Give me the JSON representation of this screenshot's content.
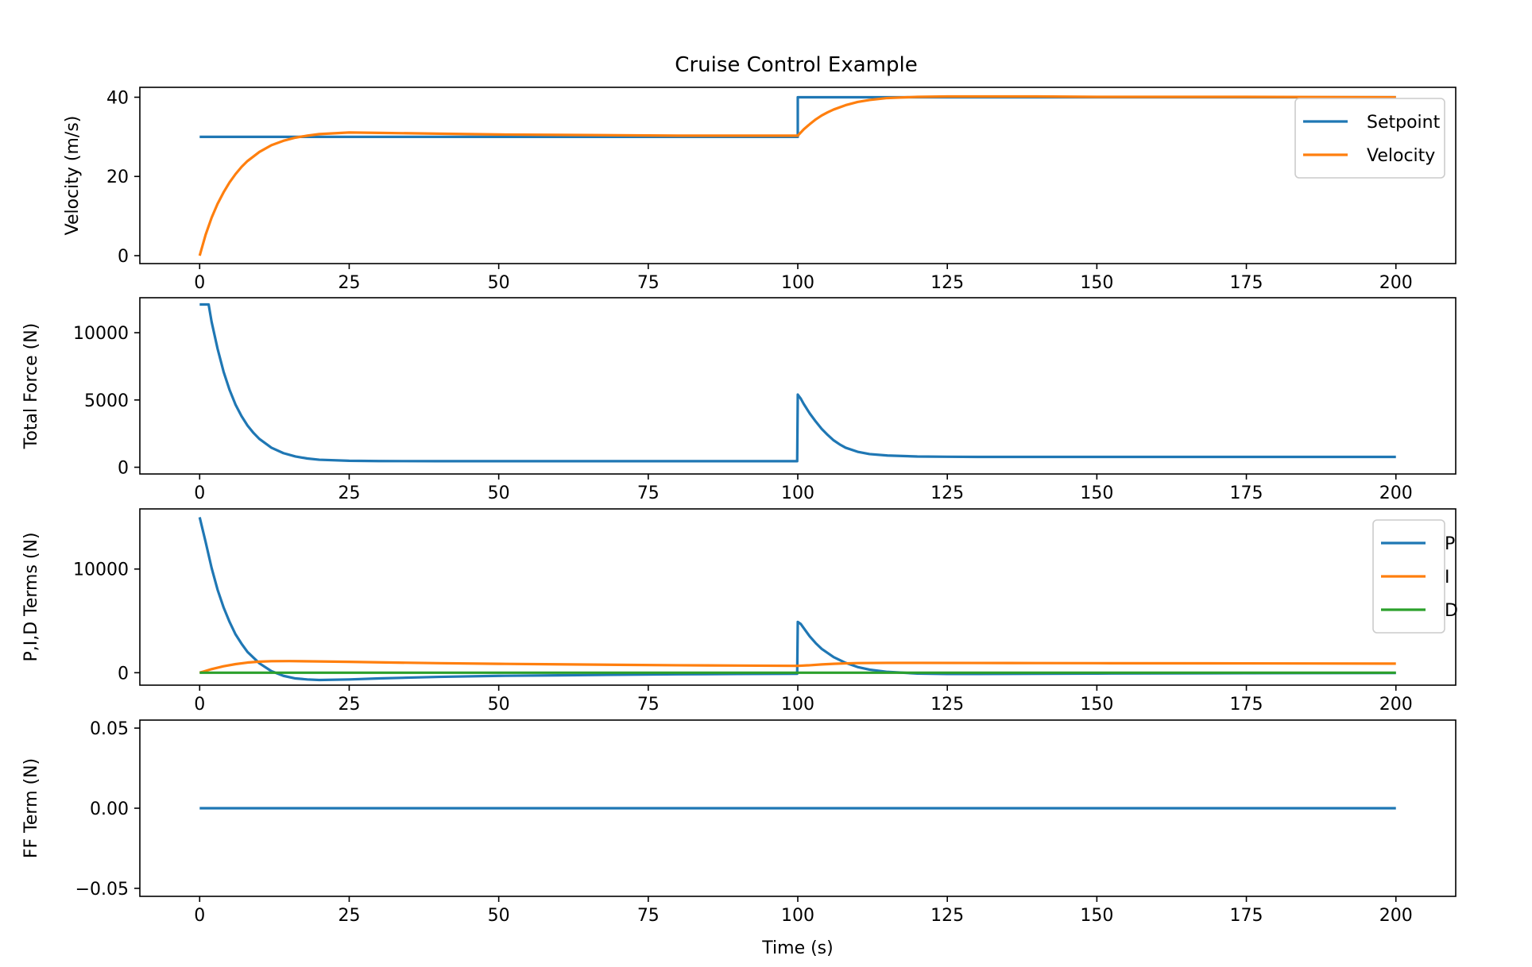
{
  "chart_data": {
    "type": "line",
    "title": "Cruise Control Example",
    "xlabel": "Time (s)",
    "shared_x": {
      "range": [
        -10,
        210
      ],
      "ticks": [
        0,
        25,
        50,
        75,
        100,
        125,
        150,
        175,
        200
      ]
    },
    "colors": {
      "blue": "#1f77b4",
      "orange": "#ff7f0e",
      "green": "#2ca02c"
    },
    "subplots": [
      {
        "id": "velocity",
        "ylabel": "Velocity (m/s)",
        "ylim": [
          -2,
          42.5
        ],
        "yticks": [
          0,
          20,
          40
        ],
        "ytick_labels": [
          "0",
          "20",
          "40"
        ],
        "legend": {
          "location": "top-right",
          "entries": [
            "Setpoint",
            "Velocity"
          ]
        },
        "series": [
          {
            "name": "Setpoint",
            "color": "#1f77b4",
            "x": [
              0,
              100,
              100,
              200
            ],
            "y": [
              30,
              30,
              40,
              40
            ]
          },
          {
            "name": "Velocity",
            "color": "#ff7f0e",
            "x": [
              0,
              1,
              2,
              3,
              4,
              5,
              6,
              7,
              8,
              10,
              12,
              14,
              16,
              18,
              20,
              25,
              30,
              40,
              50,
              60,
              70,
              80,
              90,
              100,
              101,
              102,
              103,
              104,
              105,
              106,
              108,
              110,
              112,
              115,
              120,
              125,
              130,
              140,
              150,
              175,
              200
            ],
            "y": [
              0,
              5.3,
              9.6,
              13.1,
              16.0,
              18.5,
              20.6,
              22.4,
              23.9,
              26.2,
              27.9,
              29.0,
              29.8,
              30.3,
              30.7,
              31.1,
              31.0,
              30.8,
              30.6,
              30.5,
              30.4,
              30.3,
              30.3,
              30.3,
              31.9,
              33.2,
              34.4,
              35.4,
              36.2,
              36.9,
              38.0,
              38.8,
              39.3,
              39.8,
              40.1,
              40.2,
              40.2,
              40.2,
              40.1,
              40.1,
              40.0
            ]
          }
        ]
      },
      {
        "id": "force",
        "ylabel": "Total Force (N)",
        "ylim": [
          -500,
          12600
        ],
        "yticks": [
          0,
          5000,
          10000
        ],
        "ytick_labels": [
          "0",
          "5000",
          "10000"
        ],
        "series": [
          {
            "name": "",
            "color": "#1f77b4",
            "x": [
              0,
              1,
              1.5,
              2,
              3,
              4,
              5,
              6,
              7,
              8,
              9,
              10,
              12,
              14,
              16,
              18,
              20,
              25,
              30,
              40,
              50,
              60,
              70,
              80,
              90,
              99.9,
              100,
              100.5,
              101,
              102,
              103,
              104,
              105,
              106,
              107,
              108,
              110,
              112,
              115,
              120,
              125,
              130,
              140,
              150,
              175,
              200
            ],
            "y": [
              12100,
              12100,
              12100,
              10800,
              8800,
              7100,
              5750,
              4650,
              3800,
              3100,
              2550,
              2100,
              1450,
              1050,
              800,
              650,
              560,
              480,
              460,
              450,
              450,
              450,
              450,
              450,
              450,
              450,
              5400,
              5100,
              4700,
              4000,
              3400,
              2850,
              2400,
              2000,
              1700,
              1450,
              1150,
              980,
              870,
              800,
              780,
              770,
              770,
              770,
              770,
              770
            ]
          }
        ]
      },
      {
        "id": "pid",
        "ylabel": "P,I,D Terms (N)",
        "ylim": [
          -1200,
          15800
        ],
        "yticks": [
          0,
          10000
        ],
        "ytick_labels": [
          "0",
          "10000"
        ],
        "legend": {
          "location": "top-right",
          "entries": [
            "P",
            "I",
            "D"
          ]
        },
        "series": [
          {
            "name": "P",
            "color": "#1f77b4",
            "x": [
              0,
              1,
              2,
              3,
              4,
              5,
              6,
              7,
              8,
              10,
              12,
              14,
              16,
              18,
              20,
              25,
              30,
              40,
              50,
              60,
              70,
              80,
              90,
              99.9,
              100,
              100.5,
              101,
              102,
              103,
              104,
              106,
              108,
              110,
              112,
              115,
              120,
              125,
              130,
              140,
              150,
              175,
              200
            ],
            "y": [
              15000,
              12600,
              10100,
              8000,
              6300,
              4900,
              3700,
              2800,
              2000,
              900,
              150,
              -300,
              -550,
              -650,
              -700,
              -650,
              -550,
              -400,
              -300,
              -250,
              -200,
              -150,
              -120,
              -100,
              4900,
              4700,
              4300,
              3500,
              2850,
              2300,
              1500,
              950,
              550,
              300,
              80,
              -80,
              -120,
              -120,
              -100,
              -80,
              -40,
              -20
            ]
          },
          {
            "name": "I",
            "color": "#ff7f0e",
            "x": [
              0,
              2,
              4,
              6,
              8,
              10,
              12,
              15,
              20,
              25,
              30,
              40,
              50,
              60,
              70,
              80,
              90,
              100,
              102,
              104,
              106,
              108,
              110,
              115,
              120,
              130,
              140,
              150,
              175,
              200
            ],
            "y": [
              0,
              350,
              620,
              830,
              980,
              1070,
              1110,
              1120,
              1090,
              1050,
              1000,
              920,
              860,
              810,
              760,
              720,
              690,
              660,
              720,
              800,
              860,
              900,
              930,
              950,
              950,
              940,
              930,
              920,
              900,
              880
            ]
          },
          {
            "name": "D",
            "color": "#2ca02c",
            "x": [
              0,
              50,
              100,
              100.2,
              150,
              200
            ],
            "y": [
              0,
              0,
              0,
              0,
              0,
              0
            ]
          }
        ]
      },
      {
        "id": "ff",
        "ylabel": "FF Term (N)",
        "ylim": [
          -0.055,
          0.055
        ],
        "yticks": [
          -0.05,
          0.0,
          0.05
        ],
        "ytick_labels": [
          "−0.05",
          "0.00",
          "0.05"
        ],
        "show_xlabel": true,
        "series": [
          {
            "name": "",
            "color": "#1f77b4",
            "x": [
              0,
              200
            ],
            "y": [
              0,
              0
            ]
          }
        ]
      }
    ]
  }
}
